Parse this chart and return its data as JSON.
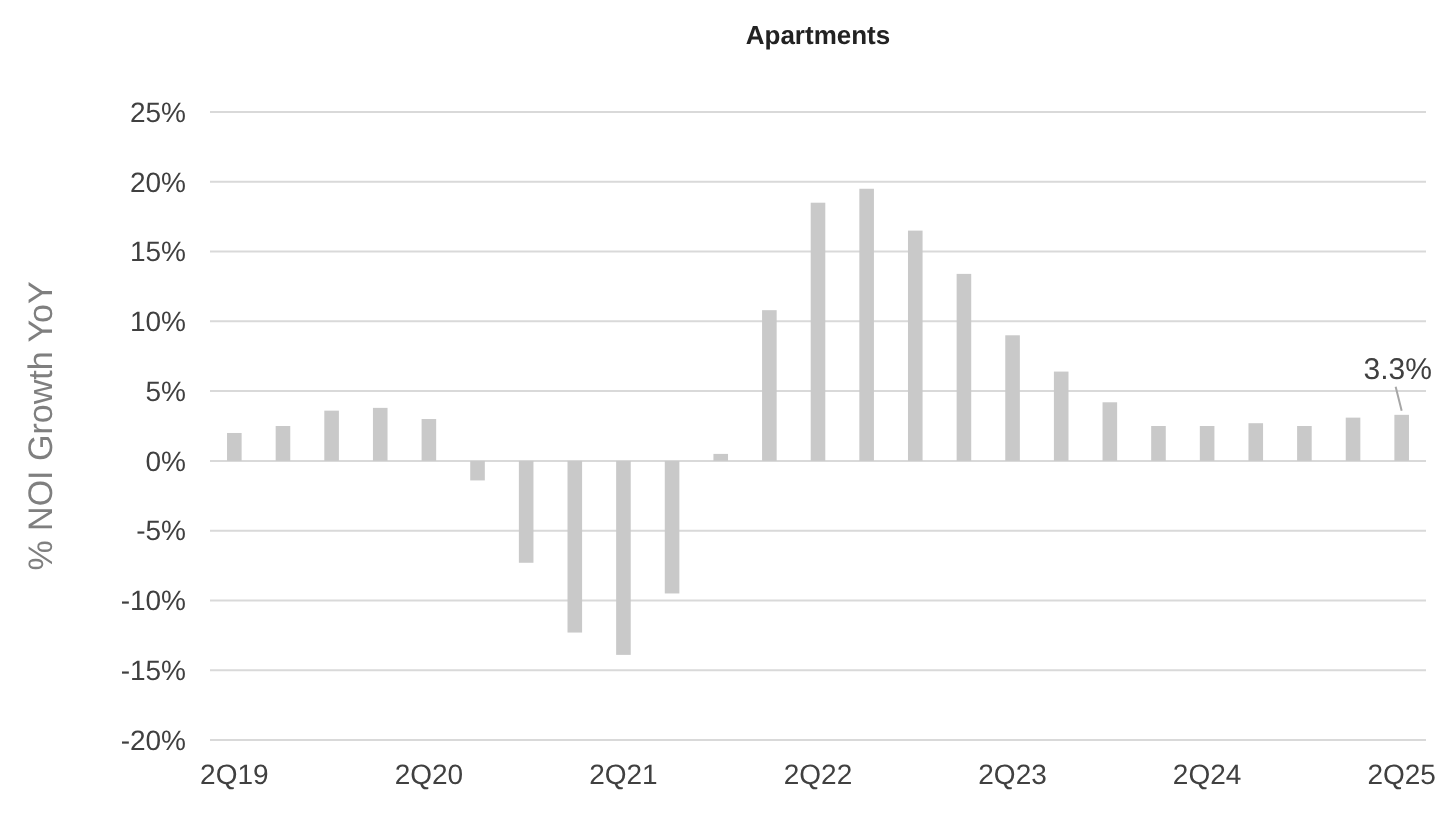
{
  "chart_data": {
    "type": "bar",
    "title": "Apartments",
    "ylabel": "% NOI Growth YoY",
    "categories": [
      "2Q19",
      null,
      null,
      null,
      "2Q20",
      null,
      null,
      null,
      "2Q21",
      null,
      null,
      null,
      "2Q22",
      null,
      null,
      null,
      "2Q23",
      null,
      null,
      null,
      "2Q24",
      null,
      null,
      null,
      "2Q25"
    ],
    "values": [
      2.0,
      2.5,
      3.6,
      3.8,
      3.0,
      -1.4,
      -7.3,
      -12.3,
      -13.9,
      -9.5,
      0.5,
      10.8,
      18.5,
      19.5,
      16.5,
      13.4,
      9.0,
      6.4,
      4.2,
      2.5,
      2.5,
      2.7,
      2.5,
      3.1,
      3.3
    ],
    "value_labels": [
      null,
      null,
      null,
      null,
      null,
      null,
      null,
      null,
      null,
      null,
      null,
      null,
      null,
      null,
      null,
      null,
      null,
      null,
      null,
      null,
      null,
      null,
      null,
      null,
      "3.3%"
    ],
    "color": "#c9c9c9",
    "ylim": [
      -20,
      25
    ],
    "yticks": [
      {
        "value": -20,
        "label": "-20%"
      },
      {
        "value": -15,
        "label": "-15%"
      },
      {
        "value": -10,
        "label": "-10%"
      },
      {
        "value": -5,
        "label": "-5%"
      },
      {
        "value": 0,
        "label": "0%"
      },
      {
        "value": 5,
        "label": "5%"
      },
      {
        "value": 10,
        "label": "10%"
      },
      {
        "value": 15,
        "label": "15%"
      },
      {
        "value": 20,
        "label": "20%"
      },
      {
        "value": 25,
        "label": "25%"
      }
    ],
    "grid": "y"
  }
}
